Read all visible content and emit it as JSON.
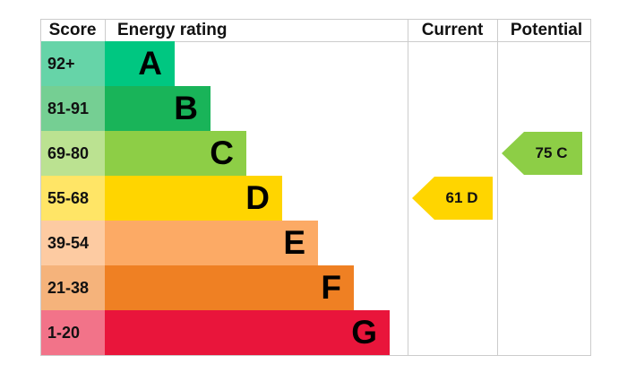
{
  "header": {
    "score": "Score",
    "rating": "Energy rating",
    "current": "Current",
    "potential": "Potential"
  },
  "bands": [
    {
      "score": "92+",
      "rating": "A",
      "color": "#00c781",
      "cell_color": "#66d4a8"
    },
    {
      "score": "81-91",
      "rating": "B",
      "color": "#19b459",
      "cell_color": "#75cf93"
    },
    {
      "score": "69-80",
      "rating": "C",
      "color": "#8dce46",
      "cell_color": "#bbe291"
    },
    {
      "score": "55-68",
      "rating": "D",
      "color": "#ffd500",
      "cell_color": "#ffe566"
    },
    {
      "score": "39-54",
      "rating": "E",
      "color": "#fcaa65",
      "cell_color": "#fdcba2"
    },
    {
      "score": "21-38",
      "rating": "F",
      "color": "#ef8023",
      "cell_color": "#f5b37b"
    },
    {
      "score": "1-20",
      "rating": "G",
      "color": "#e9153b",
      "cell_color": "#f27389"
    }
  ],
  "current": {
    "score": 61,
    "rating": "D"
  },
  "potential": {
    "score": 75,
    "rating": "C"
  }
}
